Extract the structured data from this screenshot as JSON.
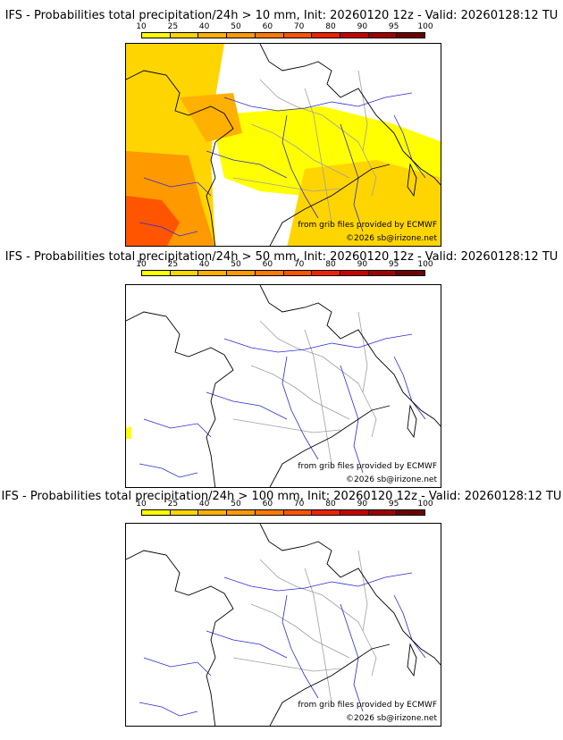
{
  "scale": {
    "ticks": [
      "10",
      "25",
      "40",
      "50",
      "60",
      "70",
      "80",
      "90",
      "95",
      "100"
    ],
    "colors": [
      "#ffff00",
      "#ffd500",
      "#ffb000",
      "#ff9900",
      "#ff7a00",
      "#ff5500",
      "#ee2200",
      "#c80000",
      "#a00000",
      "#6e0000"
    ]
  },
  "panels": [
    {
      "title": "IFS - Probabilities total precipitation/24h > 10 mm, Init: 20260120 12z - Valid: 20260128:12 TU",
      "credit": "from grib files provided by ECMWF",
      "copyright": "©2026 sb@irizone.net",
      "fill_level": "high"
    },
    {
      "title": "IFS - Probabilities total precipitation/24h > 50 mm, Init: 20260120 12z - Valid: 20260128:12 TU",
      "credit": "from grib files provided by ECMWF",
      "copyright": "©2026 sb@irizone.net",
      "fill_level": "minimal"
    },
    {
      "title": "IFS - Probabilities total precipitation/24h > 100 mm, Init: 20260120 12z - Valid: 20260128:12 TU",
      "credit": "from grib files provided by ECMWF",
      "copyright": "©2026 sb@irizone.net",
      "fill_level": "none"
    }
  ]
}
